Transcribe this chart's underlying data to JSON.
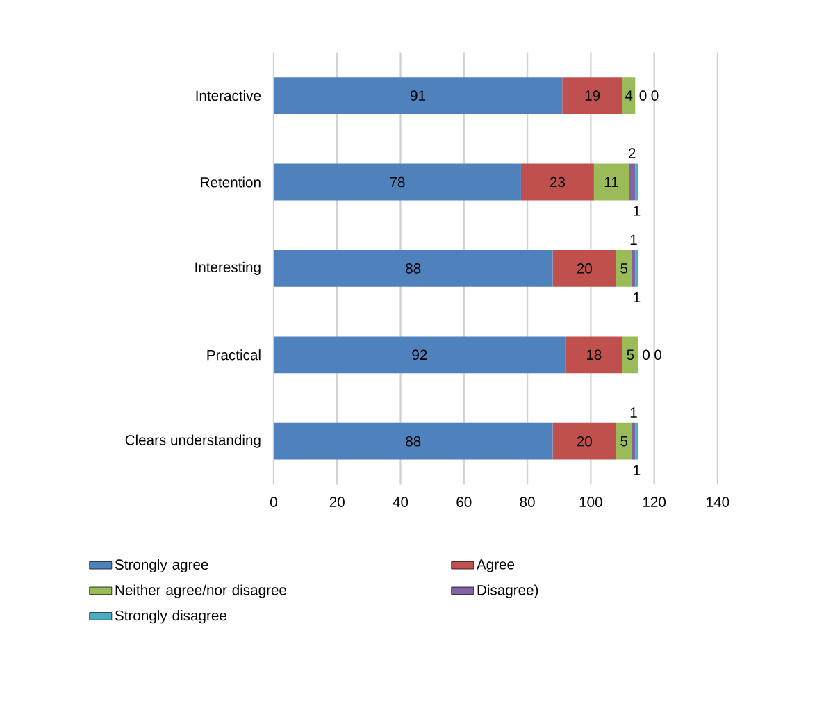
{
  "chart_data": {
    "type": "bar",
    "orientation": "horizontal",
    "stacked": true,
    "data_labels": true,
    "grid": "x",
    "legend": "bottom",
    "categories": [
      "Interactive",
      "Retention",
      "Interesting",
      "Practical",
      "Clears understanding"
    ],
    "xlim": [
      0,
      140
    ],
    "xticks": [
      0,
      20,
      40,
      60,
      80,
      100,
      120,
      140
    ],
    "series": [
      {
        "name": "Strongly agree",
        "color": "#4f81bd",
        "values": [
          91,
          78,
          88,
          92,
          88
        ]
      },
      {
        "name": "Agree",
        "color": "#c0504d",
        "values": [
          19,
          23,
          20,
          18,
          20
        ]
      },
      {
        "name": "Neither agree/nor disagree",
        "color": "#9bbb59",
        "values": [
          4,
          11,
          5,
          5,
          5
        ]
      },
      {
        "name": "Disagree)",
        "color": "#8064a2",
        "values": [
          0,
          2,
          1,
          0,
          1
        ]
      },
      {
        "name": "Strongly disagree",
        "color": "#4bacc6",
        "values": [
          0,
          1,
          1,
          0,
          1
        ]
      }
    ]
  }
}
